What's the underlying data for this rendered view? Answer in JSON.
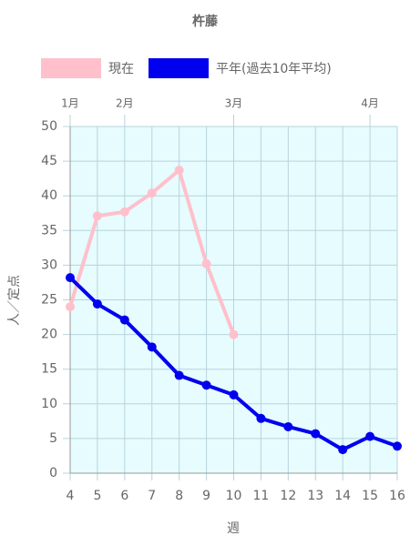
{
  "chart_data": {
    "type": "line",
    "title": "杵藤",
    "x_label": "週",
    "y_label": "人／定点",
    "x": [
      4,
      5,
      6,
      7,
      8,
      9,
      10,
      11,
      12,
      13,
      14,
      15,
      16
    ],
    "series": [
      {
        "name": "現在",
        "color": "#ffc0cb",
        "values": [
          24,
          37.1,
          37.7,
          40.4,
          43.7,
          30.2,
          20,
          null,
          null,
          null,
          null,
          null,
          null
        ]
      },
      {
        "name": "平年(過去10年平均)",
        "color": "#0000ee",
        "values": [
          28.2,
          24.4,
          22.1,
          18.2,
          14.1,
          12.7,
          11.3,
          7.9,
          6.7,
          5.7,
          3.4,
          5.3,
          3.9
        ]
      }
    ],
    "xlim": [
      4,
      16
    ],
    "xticks": [
      4,
      5,
      6,
      7,
      8,
      9,
      10,
      11,
      12,
      13,
      14,
      15,
      16
    ],
    "x2ticks": [
      {
        "value": 4,
        "label": "1月"
      },
      {
        "value": 6,
        "label": "2月"
      },
      {
        "value": 10,
        "label": "3月"
      },
      {
        "value": 15,
        "label": "4月"
      }
    ],
    "ylim": [
      0,
      50
    ],
    "yticks": [
      0,
      5,
      10,
      15,
      20,
      25,
      30,
      35,
      40,
      45,
      50
    ],
    "grid": true,
    "plot_background": "#e6fcff"
  }
}
